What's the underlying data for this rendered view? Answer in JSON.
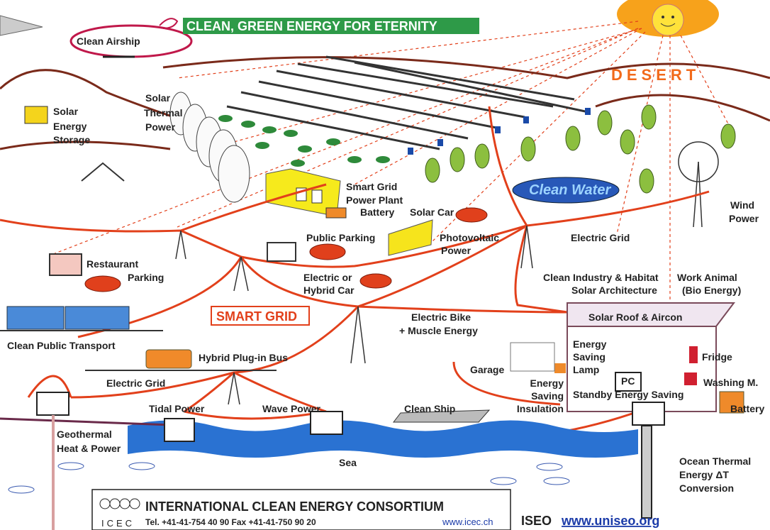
{
  "header": {
    "title": "CLEAN, GREEN ENERGY FOR ETERNITY"
  },
  "labels": {
    "airship": "Clean Airship",
    "desert": "DESERT",
    "solar_storage": [
      "Solar",
      "Energy",
      "Storage"
    ],
    "solar_thermal": [
      "Solar",
      "Thermal",
      "Power"
    ],
    "power_plant": [
      "Smart Grid",
      "Power Plant"
    ],
    "battery_plant": "Battery",
    "solar_car": "Solar Car",
    "clean_water": "Clean Water",
    "wind": [
      "Wind",
      "Power"
    ],
    "public_parking": "Public Parking",
    "photovoltaic": [
      "Photovoltaic",
      "Power"
    ],
    "electric_grid_upper": "Electric Grid",
    "restaurant": [
      "Restaurant",
      "Parking"
    ],
    "hybrid_car": [
      "Electric or",
      "Hybrid Car"
    ],
    "industry": [
      "Clean Industry & Habitat",
      "Solar Architecture"
    ],
    "work_animal": [
      "Work Animal",
      "(Bio Energy)"
    ],
    "smart_grid": "SMART GRID",
    "bike": [
      "Electric Bike",
      "+ Muscle Energy"
    ],
    "solar_roof": "Solar Roof & Aircon",
    "transport": "Clean Public Transport",
    "bus": "Hybrid Plug-in Bus",
    "lamp": [
      "Energy",
      "Saving",
      "Lamp"
    ],
    "fridge": "Fridge",
    "garage": "Garage",
    "pc": "PC",
    "washing": "Washing M.",
    "insulation": [
      "Energy",
      "Saving",
      "Insulation"
    ],
    "standby": "Standby Energy Saving",
    "electric_grid_lower": "Electric Grid",
    "battery_house": "Battery",
    "tidal": "Tidal Power",
    "wave": "Wave Power",
    "ship": "Clean Ship",
    "geothermal": [
      "Geothermal",
      "Heat & Power"
    ],
    "sea": "Sea",
    "otec": [
      "Ocean Thermal",
      "Energy  ΔT",
      "Conversion"
    ]
  },
  "footer": {
    "logo": "ICEC",
    "name": "INTERNATIONAL CLEAN ENERGY CONSORTIUM",
    "phone": "Tel.  +41-41-754 40 90 Fax    +41-41-750 90 20",
    "web": "www.icec.ch",
    "partner": "ISEO",
    "partner_web": "www.uniseo.org"
  }
}
